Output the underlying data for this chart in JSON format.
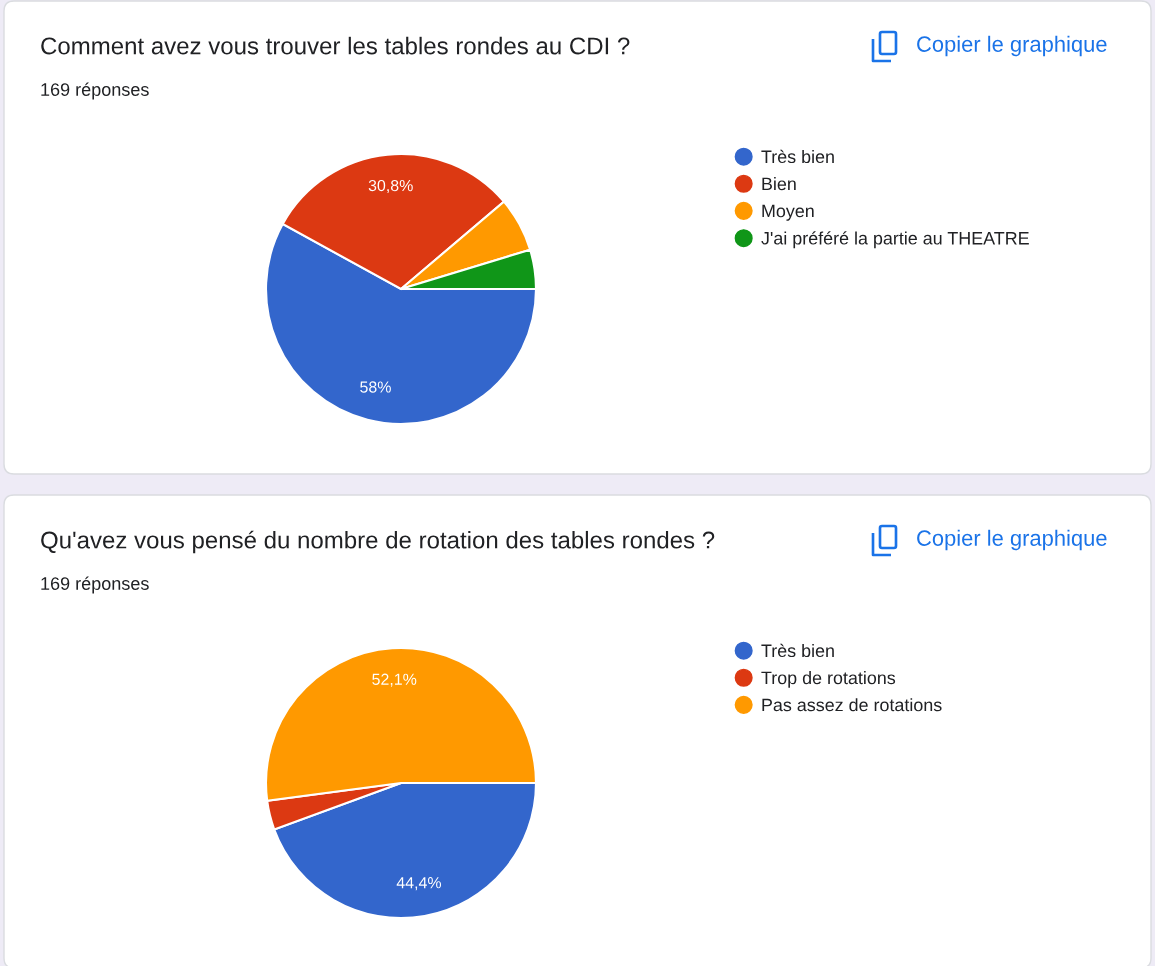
{
  "chart_data": [
    {
      "type": "pie",
      "title": "Comment avez vous trouver les tables rondes au CDI ?",
      "subtitle": "169 réponses",
      "categories": [
        "Très bien",
        "Bien",
        "Moyen",
        "J'ai préféré la partie au THEATRE"
      ],
      "values": [
        58,
        30.8,
        6.5,
        4.7
      ],
      "colors": [
        "#3366cc",
        "#dc3912",
        "#ff9900",
        "#109618"
      ],
      "value_labels": [
        "58%",
        "30,8%",
        null,
        null
      ],
      "legend": "right",
      "annotations": [
        "Copier le graphique"
      ]
    },
    {
      "type": "pie",
      "title": "Qu'avez vous pensé du nombre de rotation des tables rondes ?",
      "subtitle": "169 réponses",
      "categories": [
        "Très bien",
        "Trop de rotations",
        "Pas assez de rotations"
      ],
      "values": [
        44.4,
        3.5,
        52.1
      ],
      "colors": [
        "#3366cc",
        "#dc3912",
        "#ff9900"
      ],
      "value_labels": [
        "44,4%",
        null,
        "52,1%"
      ],
      "legend": "right",
      "annotations": [
        "Copier le graphique"
      ]
    }
  ]
}
